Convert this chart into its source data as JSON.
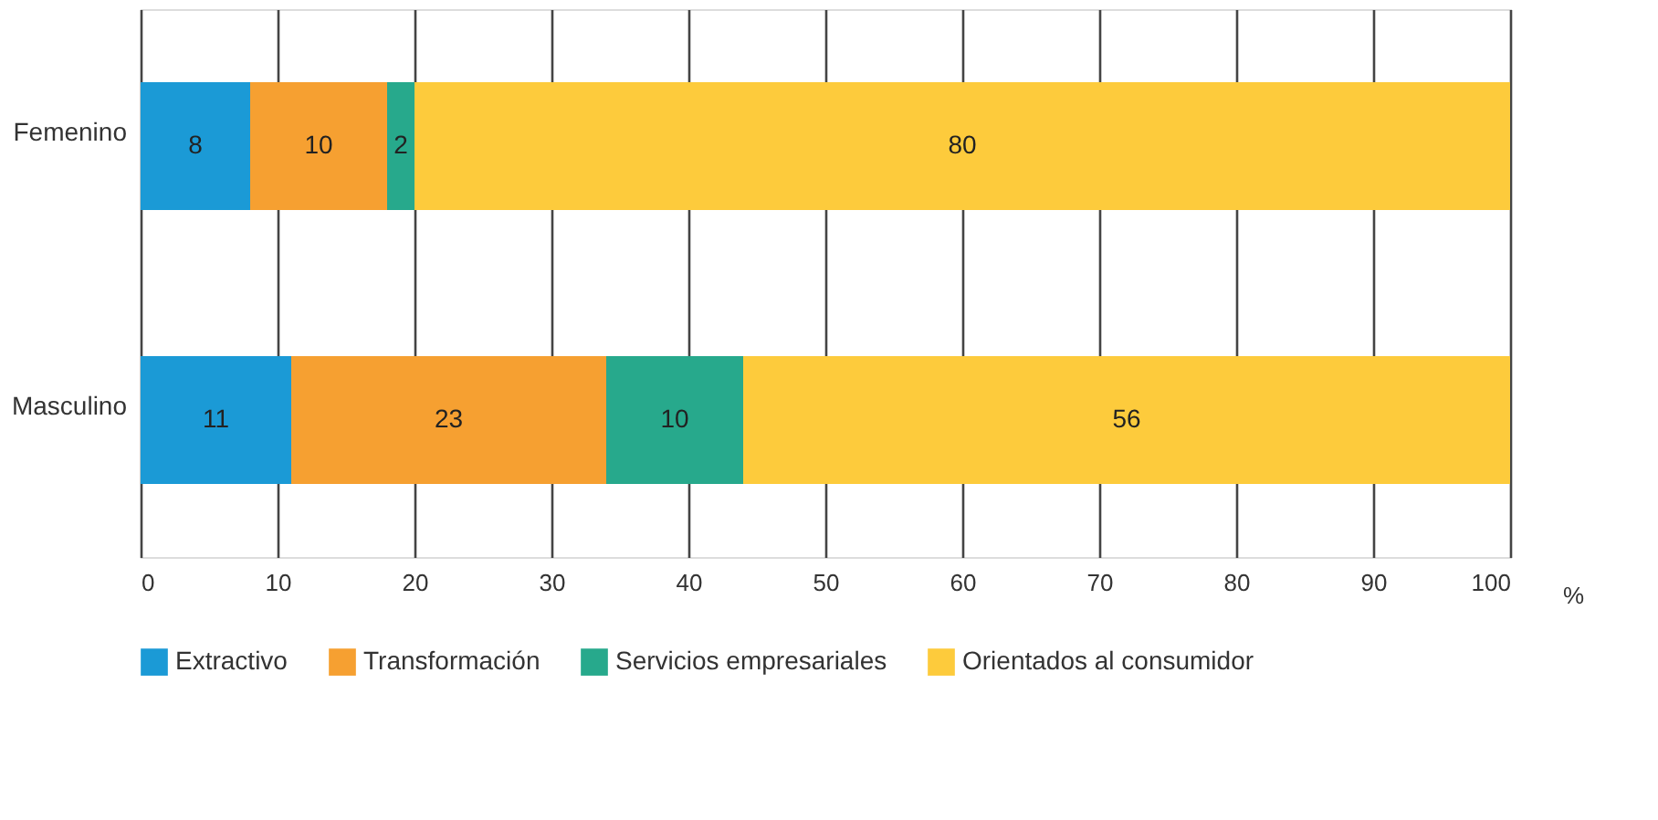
{
  "chart_data": {
    "type": "bar",
    "orientation": "horizontal",
    "stacked": true,
    "data_labels": true,
    "categories": [
      "Femenino",
      "Masculino"
    ],
    "series": [
      {
        "name": "Extractivo",
        "color": "#1b9ad6",
        "values": [
          8,
          11
        ]
      },
      {
        "name": "Transformación",
        "color": "#f6a031",
        "values": [
          10,
          23
        ]
      },
      {
        "name": "Servicios empresariales",
        "color": "#27a98c",
        "values": [
          2,
          10
        ]
      },
      {
        "name": "Orientados al consumidor",
        "color": "#fdcb3c",
        "values": [
          80,
          56
        ]
      }
    ],
    "xlabel": "%",
    "xlim": [
      0,
      100
    ],
    "xticks": [
      0,
      10,
      20,
      30,
      40,
      50,
      60,
      70,
      80,
      90,
      100
    ],
    "grid": "x",
    "legend": "bottom"
  }
}
